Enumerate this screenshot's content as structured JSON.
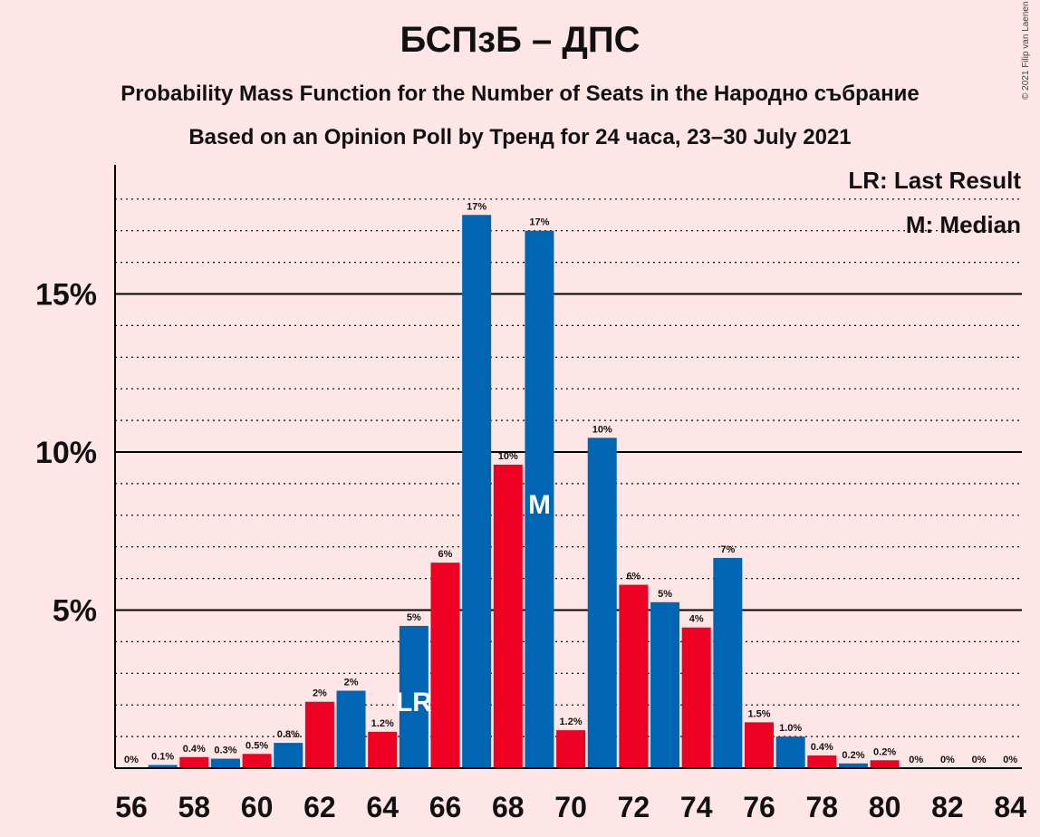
{
  "title": "БСПзБ – ДПС",
  "subtitle": "Probability Mass Function for the Number of Seats in the Народно събрание",
  "subtitle2": "Based on an Opinion Poll by Тренд for 24 часа, 23–30 July 2021",
  "copyright": "© 2021 Filip van Laenen",
  "legend": {
    "lr": "LR: Last Result",
    "m": "M: Median"
  },
  "markers": {
    "last_result_label": "LR",
    "median_label": "M"
  },
  "colors": {
    "blue": "#0066B3",
    "red": "#EE0022",
    "background": "#FFE6E6"
  },
  "chart_data": {
    "type": "bar",
    "x": [
      56,
      57,
      58,
      59,
      60,
      61,
      62,
      63,
      64,
      65,
      66,
      67,
      68,
      69,
      70,
      71,
      72,
      73,
      74,
      75,
      76,
      77,
      78,
      79,
      80,
      81,
      82,
      83,
      84
    ],
    "values": [
      0,
      0.1,
      0.35,
      0.3,
      0.45,
      0.8,
      2.1,
      2.45,
      1.15,
      4.5,
      6.5,
      17.5,
      9.6,
      17.0,
      1.2,
      10.45,
      5.8,
      5.25,
      4.45,
      6.65,
      1.45,
      1.0,
      0.4,
      0.15,
      0.25,
      0,
      0,
      0,
      0
    ],
    "labels": [
      "0%",
      "0.1%",
      "0.4%",
      "0.3%",
      "0.5%",
      "0.8%",
      "2%",
      "2%",
      "1.2%",
      "5%",
      "6%",
      "17%",
      "10%",
      "17%",
      "1.2%",
      "10%",
      "6%",
      "5%",
      "4%",
      "7%",
      "1.5%",
      "1.0%",
      "0.4%",
      "0.2%",
      "0.2%",
      "0%",
      "0%",
      "0%",
      "0%"
    ],
    "colors": [
      "blue",
      "blue",
      "red",
      "blue",
      "red",
      "blue",
      "red",
      "blue",
      "red",
      "blue",
      "red",
      "blue",
      "red",
      "blue",
      "red",
      "blue",
      "red",
      "blue",
      "red",
      "blue",
      "red",
      "blue",
      "red",
      "blue",
      "red",
      "blue",
      "red",
      "blue",
      "red"
    ],
    "x_tick_labels": [
      "56",
      "58",
      "60",
      "62",
      "64",
      "66",
      "68",
      "70",
      "72",
      "74",
      "76",
      "78",
      "80",
      "82",
      "84"
    ],
    "y_tick_labels": [
      "5%",
      "10%",
      "15%"
    ],
    "y_ticks": [
      5,
      10,
      15
    ],
    "ylim": [
      0,
      19
    ],
    "last_result": 65,
    "median": 69,
    "grid": "solid at labelled ticks, dotted every 1%"
  }
}
